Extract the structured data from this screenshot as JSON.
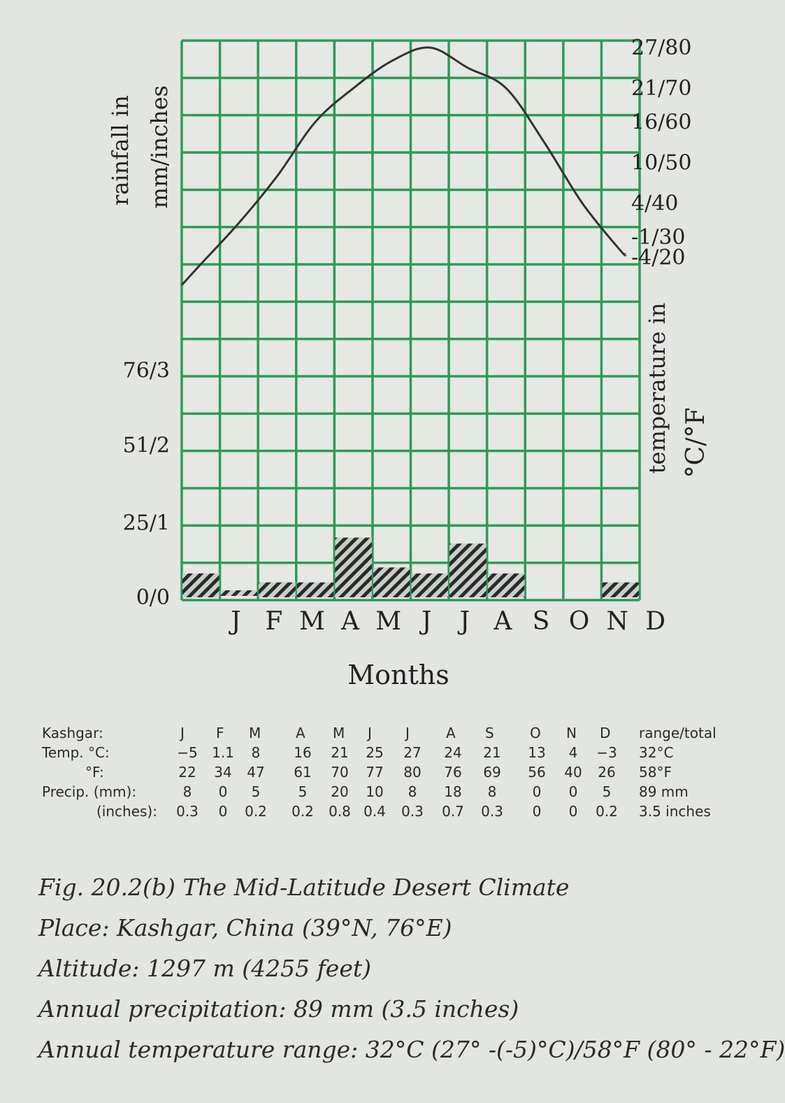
{
  "chart_data": {
    "type": "bar+line",
    "categories": [
      "J",
      "F",
      "M",
      "A",
      "M",
      "J",
      "J",
      "A",
      "S",
      "O",
      "N",
      "D"
    ],
    "temperature_series": {
      "celsius": [
        -5,
        1.1,
        8,
        16,
        21,
        25,
        27,
        24,
        21,
        13,
        4,
        -3
      ],
      "fahrenheit": [
        22,
        34,
        47,
        61,
        70,
        77,
        80,
        76,
        69,
        56,
        40,
        26
      ]
    },
    "precip_series": {
      "mm": [
        8,
        0,
        5,
        5,
        20,
        10,
        8,
        18,
        8,
        0,
        0,
        5
      ],
      "inches": [
        0.3,
        0,
        0.2,
        0.2,
        0.8,
        0.4,
        0.3,
        0.7,
        0.3,
        0,
        0,
        0.2
      ]
    },
    "left_axis": {
      "title_line1": "rainfall in",
      "title_line2": "mm/inches",
      "ticks": [
        {
          "label": "0/0",
          "value": 0
        },
        {
          "label": "25/1",
          "value": 25
        },
        {
          "label": "51/2",
          "value": 51
        },
        {
          "label": "76/3",
          "value": 76
        }
      ]
    },
    "right_axis": {
      "title_line1": "temperature in",
      "title_line2": "°C/°F",
      "ticks": [
        {
          "label": "27/80",
          "value": 27
        },
        {
          "label": "21/70",
          "value": 21
        },
        {
          "label": "16/60",
          "value": 16
        },
        {
          "label": "10/50",
          "value": 10
        },
        {
          "label": "4/40",
          "value": 4
        },
        {
          "label": "-1/30",
          "value": -1
        },
        {
          "label": "-4/20",
          "value": -4
        }
      ]
    },
    "xlabel": "Months",
    "grid": true,
    "colors": {
      "grid": "#2e9a5a",
      "curve": "#333333",
      "bars": "#2a2a2a"
    }
  },
  "table": {
    "header_label": "Kashgar:",
    "months": [
      "J",
      "F",
      "M",
      "A",
      "M",
      "J",
      "J",
      "A",
      "S",
      "O",
      "N",
      "D"
    ],
    "summary_header": "range/total",
    "rows": [
      {
        "label": "Temp. °C:",
        "values": [
          "−5",
          "1.1",
          "8",
          "16",
          "21",
          "25",
          "27",
          "24",
          "21",
          "13",
          "4",
          "−3"
        ],
        "summary": "32°C"
      },
      {
        "label": "°F:",
        "values": [
          "22",
          "34",
          "47",
          "61",
          "70",
          "77",
          "80",
          "76",
          "69",
          "56",
          "40",
          "26"
        ],
        "summary": "58°F"
      },
      {
        "label": "Precip. (mm):",
        "values": [
          "8",
          "0",
          "5",
          "5",
          "20",
          "10",
          "8",
          "18",
          "8",
          "0",
          "0",
          "5"
        ],
        "summary": "89 mm"
      },
      {
        "label": "(inches):",
        "values": [
          "0.3",
          "0",
          "0.2",
          "0.2",
          "0.8",
          "0.4",
          "0.3",
          "0.7",
          "0.3",
          "0",
          "0",
          "0.2"
        ],
        "summary": "3.5 inches"
      }
    ]
  },
  "caption": {
    "fig": "Fig. 20.2(b) The Mid-Latitude Desert Climate",
    "place": "Place: Kashgar, China  (39°N, 76°E)",
    "altitude": "Altitude: 1297 m (4255 feet)",
    "precip": "Annual precipitation: 89 mm (3.5 inches)",
    "range": "Annual temperature range: 32°C (27° -(-5)°C)/58°F (80° - 22°F)"
  }
}
